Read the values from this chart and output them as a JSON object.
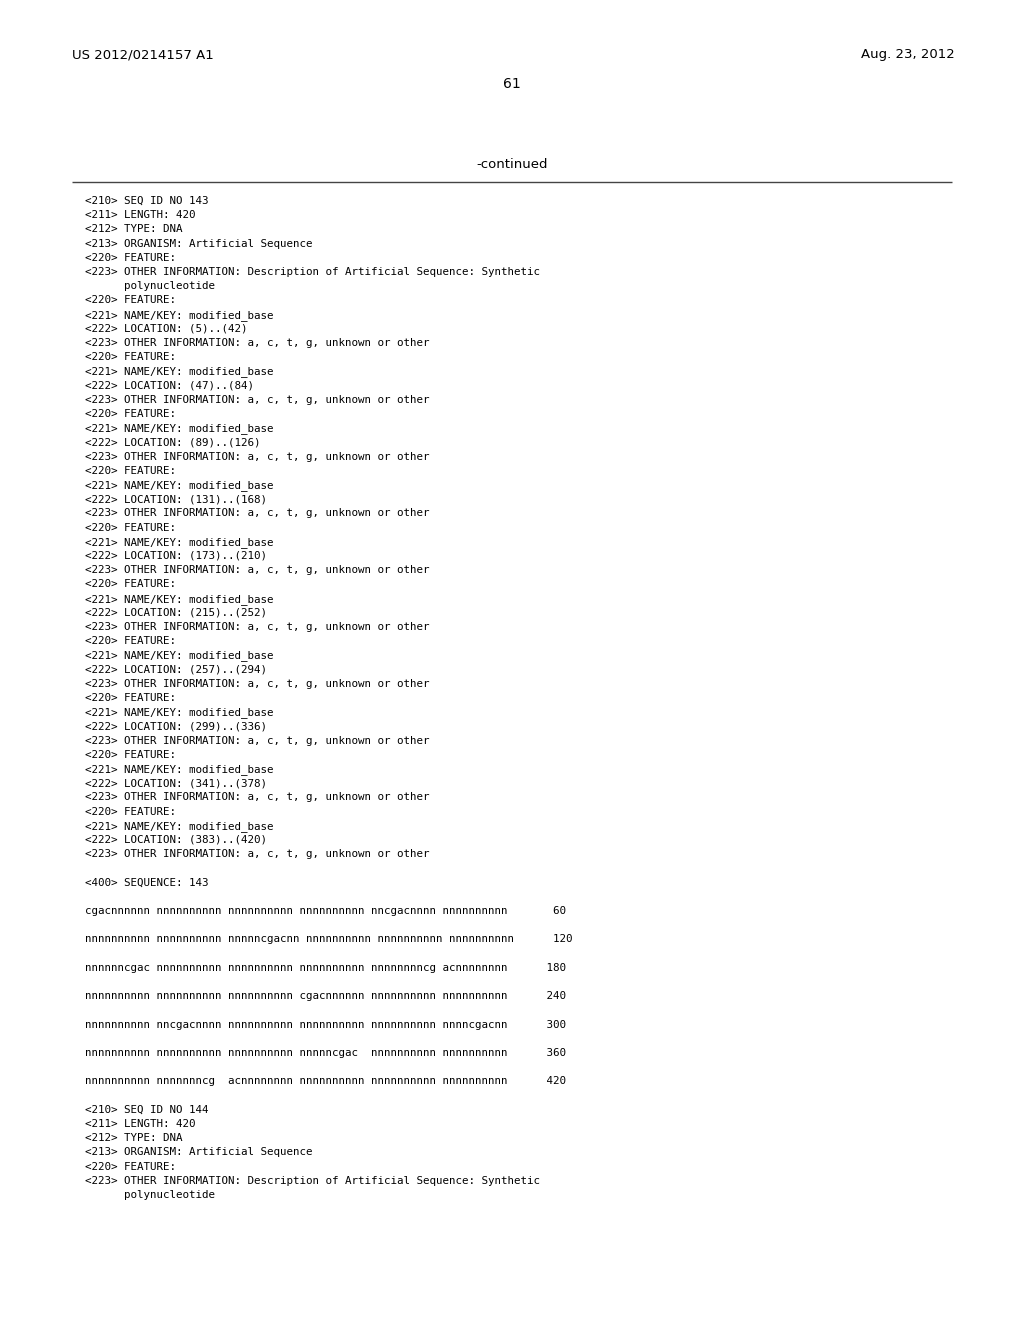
{
  "header_left": "US 2012/0214157 A1",
  "header_right": "Aug. 23, 2012",
  "page_number": "61",
  "continued_text": "-continued",
  "background_color": "#ffffff",
  "text_color": "#000000",
  "header_font_size": 9.5,
  "page_num_font_size": 10.0,
  "mono_font_size": 7.8,
  "content_lines": [
    "<210> SEQ ID NO 143",
    "<211> LENGTH: 420",
    "<212> TYPE: DNA",
    "<213> ORGANISM: Artificial Sequence",
    "<220> FEATURE:",
    "<223> OTHER INFORMATION: Description of Artificial Sequence: Synthetic",
    "      polynucleotide",
    "<220> FEATURE:",
    "<221> NAME/KEY: modified_base",
    "<222> LOCATION: (5)..(42)",
    "<223> OTHER INFORMATION: a, c, t, g, unknown or other",
    "<220> FEATURE:",
    "<221> NAME/KEY: modified_base",
    "<222> LOCATION: (47)..(84)",
    "<223> OTHER INFORMATION: a, c, t, g, unknown or other",
    "<220> FEATURE:",
    "<221> NAME/KEY: modified_base",
    "<222> LOCATION: (89)..(126)",
    "<223> OTHER INFORMATION: a, c, t, g, unknown or other",
    "<220> FEATURE:",
    "<221> NAME/KEY: modified_base",
    "<222> LOCATION: (131)..(168)",
    "<223> OTHER INFORMATION: a, c, t, g, unknown or other",
    "<220> FEATURE:",
    "<221> NAME/KEY: modified_base",
    "<222> LOCATION: (173)..(210)",
    "<223> OTHER INFORMATION: a, c, t, g, unknown or other",
    "<220> FEATURE:",
    "<221> NAME/KEY: modified_base",
    "<222> LOCATION: (215)..(252)",
    "<223> OTHER INFORMATION: a, c, t, g, unknown or other",
    "<220> FEATURE:",
    "<221> NAME/KEY: modified_base",
    "<222> LOCATION: (257)..(294)",
    "<223> OTHER INFORMATION: a, c, t, g, unknown or other",
    "<220> FEATURE:",
    "<221> NAME/KEY: modified_base",
    "<222> LOCATION: (299)..(336)",
    "<223> OTHER INFORMATION: a, c, t, g, unknown or other",
    "<220> FEATURE:",
    "<221> NAME/KEY: modified_base",
    "<222> LOCATION: (341)..(378)",
    "<223> OTHER INFORMATION: a, c, t, g, unknown or other",
    "<220> FEATURE:",
    "<221> NAME/KEY: modified_base",
    "<222> LOCATION: (383)..(420)",
    "<223> OTHER INFORMATION: a, c, t, g, unknown or other",
    "",
    "<400> SEQUENCE: 143",
    "",
    "cgacnnnnnn nnnnnnnnnn nnnnnnnnnn nnnnnnnnnn nncgacnnnn nnnnnnnnnn       60",
    "",
    "nnnnnnnnnn nnnnnnnnnn nnnnncgacnn nnnnnnnnnn nnnnnnnnnn nnnnnnnnnn      120",
    "",
    "nnnnnncgac nnnnnnnnnn nnnnnnnnnn nnnnnnnnnn nnnnnnnncg acnnnnnnnn      180",
    "",
    "nnnnnnnnnn nnnnnnnnnn nnnnnnnnnn cgacnnnnnn nnnnnnnnnn nnnnnnnnnn      240",
    "",
    "nnnnnnnnnn nncgacnnnn nnnnnnnnnn nnnnnnnnnn nnnnnnnnnn nnnncgacnn      300",
    "",
    "nnnnnnnnnn nnnnnnnnnn nnnnnnnnnn nnnnncgac  nnnnnnnnnn nnnnnnnnnn      360",
    "",
    "nnnnnnnnnn nnnnnnncg  acnnnnnnnn nnnnnnnnnn nnnnnnnnnn nnnnnnnnnn      420",
    "",
    "<210> SEQ ID NO 144",
    "<211> LENGTH: 420",
    "<212> TYPE: DNA",
    "<213> ORGANISM: Artificial Sequence",
    "<220> FEATURE:",
    "<223> OTHER INFORMATION: Description of Artificial Sequence: Synthetic",
    "      polynucleotide"
  ]
}
